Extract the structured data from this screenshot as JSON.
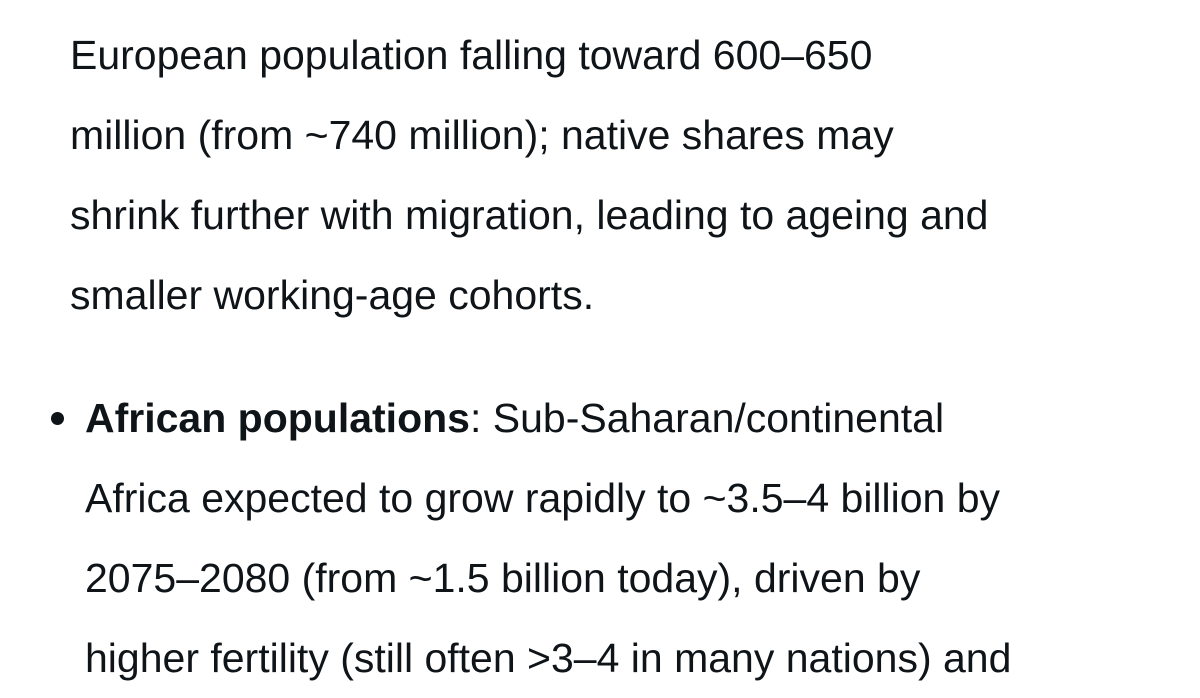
{
  "paragraph": {
    "lines": [
      "European population falling toward 600–650",
      "million (from ~740 million); native shares may",
      "shrink further with migration, leading to ageing and",
      "smaller working-age cohorts."
    ]
  },
  "bullet": {
    "label": "African populations",
    "lines": [
      ": Sub-Saharan/continental",
      "Africa expected to grow rapidly to ~3.5–4 billion by",
      "2075–2080 (from ~1.5 billion today), driven by",
      "higher fertility (still often >3–4 in many nations) and"
    ]
  }
}
